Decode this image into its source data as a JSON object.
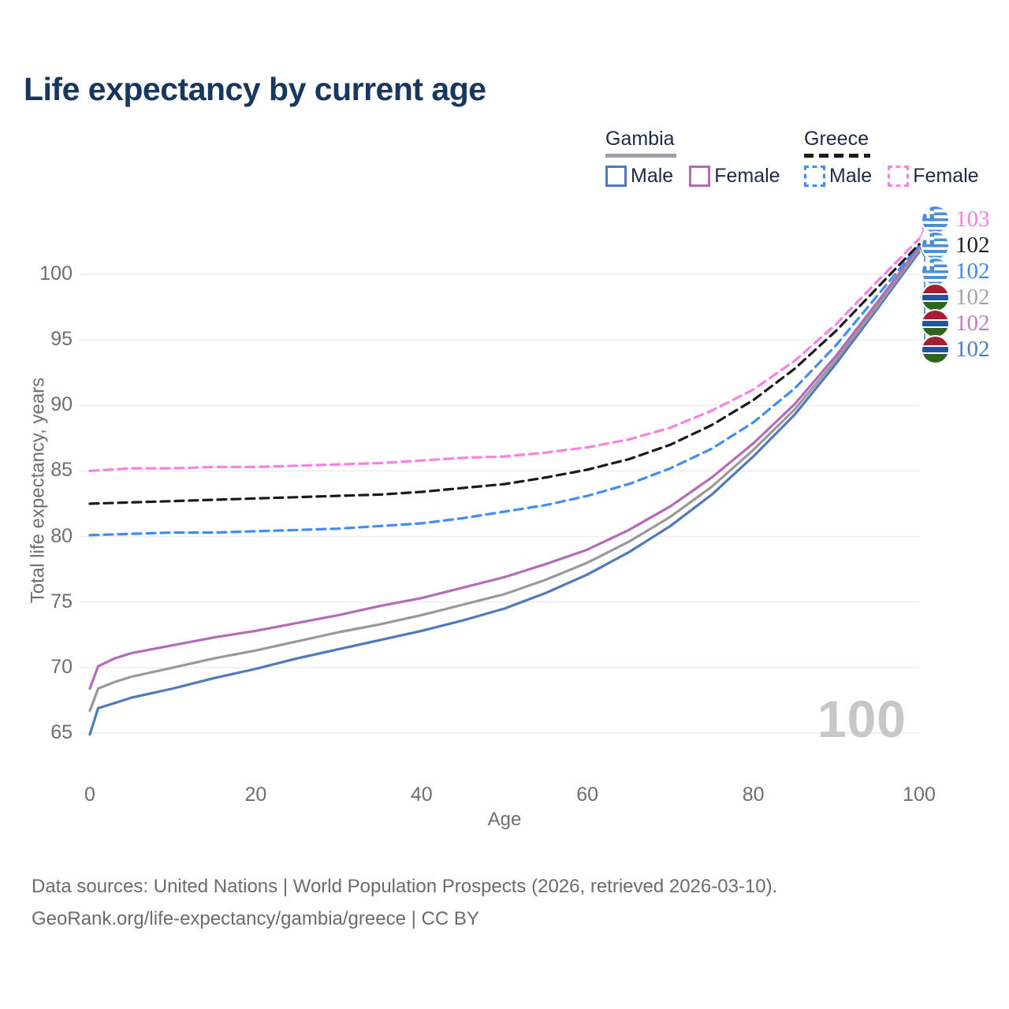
{
  "title": "Life expectancy by current age",
  "watermark": "100",
  "legend": {
    "groups": [
      {
        "id": "gambia",
        "label": "Gambia",
        "underline": "solid",
        "underline_color": "#9aa0a6",
        "items": [
          {
            "label": "Male",
            "color": "#4e79bd",
            "dash": false
          },
          {
            "label": "Female",
            "color": "#b56ab7",
            "dash": false
          }
        ]
      },
      {
        "id": "greece",
        "label": "Greece",
        "underline": "dashed",
        "underline_color": "#1a1a1a",
        "items": [
          {
            "label": "Male",
            "color": "#3f8df5",
            "dash": true
          },
          {
            "label": "Female",
            "color": "#fb80e3",
            "dash": true
          }
        ]
      }
    ]
  },
  "chart_data": {
    "type": "line",
    "title": "Life expectancy by current age",
    "xlabel": "Age",
    "ylabel": "Total life expectancy, years",
    "xticks": [
      0,
      20,
      40,
      60,
      80,
      100
    ],
    "yticks": [
      65,
      70,
      75,
      80,
      85,
      90,
      95,
      100
    ],
    "xlim": [
      0,
      100
    ],
    "ylim": [
      65,
      103.5
    ],
    "grid": "horizontal",
    "legend_position": "top-right",
    "series": [
      {
        "id": "gambia-male",
        "name": "Gambia Male",
        "color": "#4e79bd",
        "dash": false,
        "points": [
          [
            0,
            64.9
          ],
          [
            1,
            66.9
          ],
          [
            3,
            67.3
          ],
          [
            5,
            67.7
          ],
          [
            10,
            68.4
          ],
          [
            15,
            69.2
          ],
          [
            20,
            69.9
          ],
          [
            25,
            70.7
          ],
          [
            30,
            71.4
          ],
          [
            35,
            72.1
          ],
          [
            40,
            72.8
          ],
          [
            45,
            73.6
          ],
          [
            50,
            74.5
          ],
          [
            55,
            75.7
          ],
          [
            60,
            77.1
          ],
          [
            65,
            78.8
          ],
          [
            70,
            80.8
          ],
          [
            75,
            83.2
          ],
          [
            80,
            86.1
          ],
          [
            85,
            89.3
          ],
          [
            90,
            93.2
          ],
          [
            95,
            97.4
          ],
          [
            100,
            101.7
          ]
        ]
      },
      {
        "id": "gambia-all",
        "name": "Gambia Both sexes",
        "color": "#999999",
        "dash": false,
        "points": [
          [
            0,
            66.7
          ],
          [
            1,
            68.4
          ],
          [
            3,
            68.9
          ],
          [
            5,
            69.3
          ],
          [
            10,
            70.0
          ],
          [
            15,
            70.7
          ],
          [
            20,
            71.3
          ],
          [
            25,
            72.0
          ],
          [
            30,
            72.7
          ],
          [
            35,
            73.3
          ],
          [
            40,
            74.0
          ],
          [
            45,
            74.8
          ],
          [
            50,
            75.6
          ],
          [
            55,
            76.7
          ],
          [
            60,
            78.0
          ],
          [
            65,
            79.6
          ],
          [
            70,
            81.5
          ],
          [
            75,
            83.8
          ],
          [
            80,
            86.6
          ],
          [
            85,
            89.7
          ],
          [
            90,
            93.5
          ],
          [
            95,
            97.6
          ],
          [
            100,
            101.9
          ]
        ]
      },
      {
        "id": "gambia-female",
        "name": "Gambia Female",
        "color": "#b56ab7",
        "dash": false,
        "points": [
          [
            0,
            68.4
          ],
          [
            1,
            70.1
          ],
          [
            3,
            70.7
          ],
          [
            5,
            71.1
          ],
          [
            10,
            71.7
          ],
          [
            15,
            72.3
          ],
          [
            20,
            72.8
          ],
          [
            25,
            73.4
          ],
          [
            30,
            74.0
          ],
          [
            35,
            74.7
          ],
          [
            40,
            75.3
          ],
          [
            45,
            76.1
          ],
          [
            50,
            76.9
          ],
          [
            55,
            77.9
          ],
          [
            60,
            79.0
          ],
          [
            65,
            80.5
          ],
          [
            70,
            82.3
          ],
          [
            75,
            84.5
          ],
          [
            80,
            87.1
          ],
          [
            85,
            90.1
          ],
          [
            90,
            93.8
          ],
          [
            95,
            97.9
          ],
          [
            100,
            102.1
          ]
        ]
      },
      {
        "id": "greece-male",
        "name": "Greece Male",
        "color": "#3f8df5",
        "dash": true,
        "points": [
          [
            0,
            80.1
          ],
          [
            5,
            80.2
          ],
          [
            10,
            80.3
          ],
          [
            15,
            80.3
          ],
          [
            20,
            80.4
          ],
          [
            25,
            80.5
          ],
          [
            30,
            80.6
          ],
          [
            35,
            80.8
          ],
          [
            40,
            81.0
          ],
          [
            45,
            81.4
          ],
          [
            50,
            81.9
          ],
          [
            55,
            82.4
          ],
          [
            60,
            83.1
          ],
          [
            65,
            84.0
          ],
          [
            70,
            85.2
          ],
          [
            75,
            86.7
          ],
          [
            80,
            88.7
          ],
          [
            85,
            91.3
          ],
          [
            90,
            94.6
          ],
          [
            95,
            98.4
          ],
          [
            100,
            102.2
          ]
        ]
      },
      {
        "id": "greece-all",
        "name": "Greece Both sexes",
        "color": "#1a1a1a",
        "dash": true,
        "points": [
          [
            0,
            82.5
          ],
          [
            5,
            82.6
          ],
          [
            10,
            82.7
          ],
          [
            15,
            82.8
          ],
          [
            20,
            82.9
          ],
          [
            25,
            83.0
          ],
          [
            30,
            83.1
          ],
          [
            35,
            83.2
          ],
          [
            40,
            83.4
          ],
          [
            45,
            83.7
          ],
          [
            50,
            84.0
          ],
          [
            55,
            84.5
          ],
          [
            60,
            85.1
          ],
          [
            65,
            85.9
          ],
          [
            70,
            87.0
          ],
          [
            75,
            88.5
          ],
          [
            80,
            90.4
          ],
          [
            85,
            92.8
          ],
          [
            90,
            95.7
          ],
          [
            95,
            99.0
          ],
          [
            100,
            102.3
          ]
        ]
      },
      {
        "id": "greece-female",
        "name": "Greece Female",
        "color": "#fb80e3",
        "dash": true,
        "points": [
          [
            0,
            85.0
          ],
          [
            5,
            85.2
          ],
          [
            10,
            85.2
          ],
          [
            15,
            85.3
          ],
          [
            20,
            85.3
          ],
          [
            25,
            85.4
          ],
          [
            30,
            85.5
          ],
          [
            35,
            85.6
          ],
          [
            40,
            85.8
          ],
          [
            45,
            86.0
          ],
          [
            50,
            86.1
          ],
          [
            55,
            86.4
          ],
          [
            60,
            86.8
          ],
          [
            65,
            87.4
          ],
          [
            70,
            88.3
          ],
          [
            75,
            89.6
          ],
          [
            80,
            91.2
          ],
          [
            85,
            93.4
          ],
          [
            90,
            96.2
          ],
          [
            95,
            99.5
          ],
          [
            100,
            102.7
          ]
        ]
      }
    ],
    "end_labels": [
      {
        "flag": "greece-flag",
        "value": "103",
        "color": "#fb7fe0"
      },
      {
        "flag": "greece-flag",
        "value": "102",
        "color": "#1f1f1f"
      },
      {
        "flag": "greece-flag",
        "value": "102",
        "color": "#3f87f0"
      },
      {
        "flag": "gambia-flag",
        "value": "102",
        "color": "#a3a3a3"
      },
      {
        "flag": "gambia-flag",
        "value": "102",
        "color": "#bd80c0"
      },
      {
        "flag": "gambia-flag",
        "value": "102",
        "color": "#4e7bc2"
      }
    ]
  },
  "footer": {
    "line1": "Data sources: United Nations | World Population Prospects (2026, retrieved 2026-03-10).",
    "line2": "GeoRank.org/life-expectancy/gambia/greece | CC BY"
  }
}
